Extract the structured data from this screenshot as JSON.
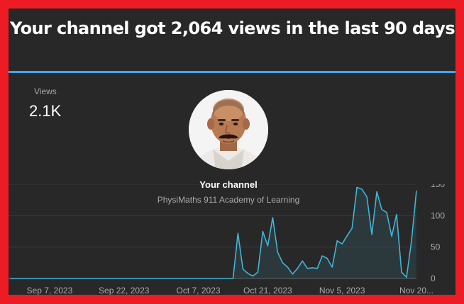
{
  "headline": "Your channel got 2,064 views in the last 90 days",
  "metric": {
    "label": "Views",
    "value": "2.1K"
  },
  "channel_popup": {
    "title": "Your channel",
    "name": "PhysiMaths 911 Academy of Learning"
  },
  "colors": {
    "accent": "#3ea6ff",
    "line": "#41b4d8",
    "background": "#282828",
    "border": "#ed1c24"
  },
  "chart_data": {
    "type": "area",
    "title": "",
    "xlabel": "",
    "ylabel": "",
    "ylim": [
      0,
      150
    ],
    "y_ticks": [
      0,
      50,
      100,
      150
    ],
    "y_tick_labels": [
      "0",
      "50",
      "100",
      "150"
    ],
    "x_tick_labels": [
      {
        "label": "Sep 7, 2023",
        "day": 8
      },
      {
        "label": "Sep 22, 2023",
        "day": 23
      },
      {
        "label": "Oct 7, 2023",
        "day": 38
      },
      {
        "label": "Oct 21, 2023",
        "day": 52
      },
      {
        "label": "Nov 5, 2023",
        "day": 67
      },
      {
        "label": "Nov 20...",
        "day": 82
      }
    ],
    "grid": true,
    "series": [
      {
        "values": [
          0,
          0,
          0,
          0,
          0,
          0,
          0,
          0,
          0,
          0,
          0,
          0,
          0,
          0,
          0,
          0,
          0,
          0,
          0,
          0,
          0,
          0,
          0,
          0,
          0,
          0,
          0,
          0,
          0,
          0,
          0,
          0,
          0,
          0,
          0,
          0,
          0,
          0,
          0,
          0,
          0,
          0,
          0,
          0,
          0,
          0,
          72,
          15,
          8,
          4,
          10,
          75,
          52,
          97,
          42,
          25,
          18,
          7,
          16,
          28,
          16,
          17,
          16,
          36,
          32,
          18,
          60,
          55,
          68,
          80,
          145,
          142,
          130,
          70,
          138,
          110,
          105,
          67,
          102,
          10,
          2,
          60,
          140
        ]
      }
    ]
  }
}
